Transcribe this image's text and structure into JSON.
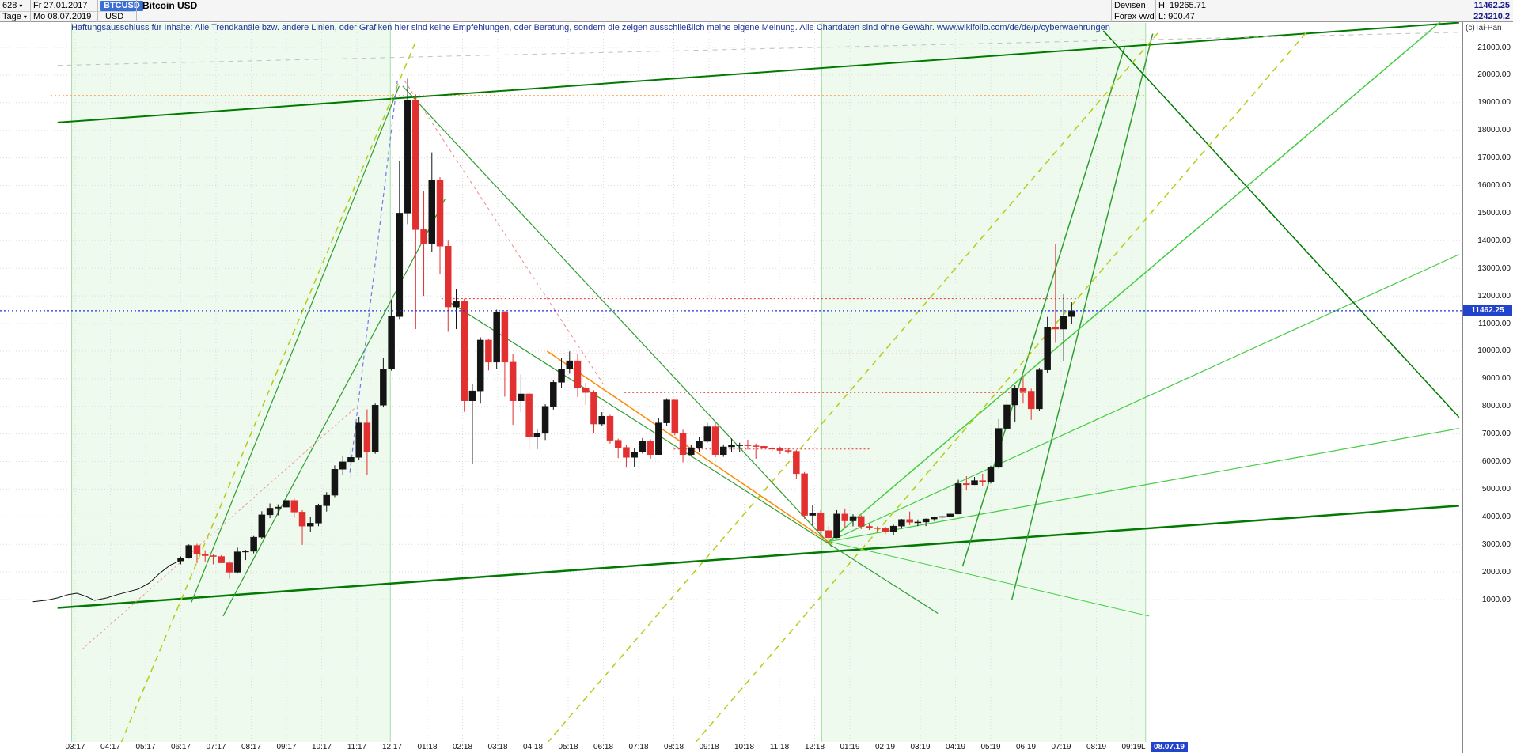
{
  "header": {
    "bars_count": "628",
    "dropdown_icon": "▾",
    "start_date": "Fr 27.01.2017",
    "symbol": "BTCUSD",
    "instrument": "Bitcoin USD",
    "period": "Tage",
    "end_date": "Mo 08.07.2019",
    "currency": "USD",
    "market": "Devisen",
    "feed": "Forex vwd",
    "high": "H: 19265.71",
    "low": "L: 900.47",
    "last_price": "11462.25",
    "last_volume": "224210.2",
    "credit": "(c)Tai-Pan"
  },
  "disclaimer": "Haftungsausschluss für Inhalte: Alle Trendkanäle bzw. andere Linien, oder Grafiken hier sind keine Empfehlungen, oder Beratung, sondern die zeigen ausschließlich meine eigene Meinung. Alle Chartdaten sind ohne Gewähr.  www.wikifolio.com/de/de/p/cyberwaehrungen",
  "axis": {
    "price_tag": "11462.25",
    "last_marker": "L",
    "date_tag": "08.07.19"
  },
  "chart_data": {
    "type": "candlestick",
    "instrument": "Bitcoin USD (BTCUSD)",
    "timeframe": "Tage",
    "date_range": [
      "27.01.2017",
      "08.07.2019"
    ],
    "period_high": 19265.71,
    "period_low": 900.47,
    "last_price": 11462.25,
    "ylim": [
      1000,
      21000
    ],
    "y_tick_labels": [
      "21000.00",
      "20000.00",
      "19000.00",
      "18000.00",
      "17000.00",
      "16000.00",
      "15000.00",
      "14000.00",
      "13000.00",
      "12000.00",
      "11000.00",
      "10000.00",
      "9000.00",
      "8000.00",
      "7000.00",
      "6000.00",
      "5000.00",
      "4000.00",
      "3000.00",
      "2000.00",
      "1000.00"
    ],
    "x_labels": [
      "03:17",
      "04:17",
      "05:17",
      "06:17",
      "07:17",
      "08:17",
      "09:17",
      "10:17",
      "11:17",
      "12:17",
      "01:18",
      "02:18",
      "03:18",
      "04:18",
      "05:18",
      "06:18",
      "07:18",
      "08:18",
      "09:18",
      "10:18",
      "11:18",
      "12:18",
      "01:19",
      "02:19",
      "03:19",
      "04:19",
      "05:19",
      "06:19",
      "07:19",
      "08:19",
      "09:19"
    ],
    "time_base": {
      "start_m": 4.0,
      "step_m": 0.23
    },
    "colors": {
      "up_candle": "#141414",
      "down_candle": "#e23030",
      "current_price_line": "#2233dd",
      "price_tag_bg": "#2244cc",
      "trend_primary": "#007a00",
      "trend_secondary": "#2e9e2e",
      "fan_green": "#44cc44",
      "dash_chartreuse": "#b4cc14",
      "orange_line": "#ff8800",
      "level_red": "#e03030",
      "grid": "#dcdcdc",
      "region_fill": "rgba(130,220,130,0.14)",
      "region_border": "rgba(90,190,90,0.5)"
    },
    "pre_line": [
      [
        -0.2,
        920
      ],
      [
        0.2,
        980
      ],
      [
        0.5,
        1060
      ],
      [
        0.8,
        1180
      ],
      [
        1.05,
        1230
      ],
      [
        1.3,
        1120
      ],
      [
        1.55,
        970
      ],
      [
        1.9,
        1060
      ],
      [
        2.2,
        1180
      ],
      [
        2.5,
        1280
      ],
      [
        2.8,
        1380
      ],
      [
        3.1,
        1600
      ],
      [
        3.4,
        1950
      ],
      [
        3.7,
        2250
      ],
      [
        4.0,
        2420
      ]
    ],
    "candles": [
      [
        2400,
        2560,
        2280,
        2510
      ],
      [
        2510,
        3000,
        2480,
        2960
      ],
      [
        2960,
        3020,
        2320,
        2650
      ],
      [
        2650,
        2790,
        2380,
        2590
      ],
      [
        2590,
        2630,
        2280,
        2560
      ],
      [
        2560,
        2610,
        2330,
        2330
      ],
      [
        2330,
        2390,
        1760,
        1990
      ],
      [
        1990,
        2880,
        1940,
        2730
      ],
      [
        2730,
        2800,
        2430,
        2750
      ],
      [
        2750,
        3300,
        2670,
        3260
      ],
      [
        3260,
        4200,
        3200,
        4070
      ],
      [
        4070,
        4480,
        3950,
        4310
      ],
      [
        4310,
        4450,
        4050,
        4350
      ],
      [
        4350,
        4950,
        4340,
        4590
      ],
      [
        4590,
        4660,
        3970,
        4170
      ],
      [
        4170,
        4240,
        2980,
        3660
      ],
      [
        3660,
        3980,
        3450,
        3770
      ],
      [
        3770,
        4470,
        3660,
        4400
      ],
      [
        4400,
        4890,
        4190,
        4780
      ],
      [
        4780,
        5860,
        4710,
        5720
      ],
      [
        5720,
        6200,
        5500,
        5990
      ],
      [
        5990,
        6470,
        5390,
        6150
      ],
      [
        6150,
        7620,
        6050,
        7400
      ],
      [
        7400,
        7890,
        5510,
        6350
      ],
      [
        6350,
        8100,
        6280,
        8040
      ],
      [
        8040,
        9750,
        7960,
        9350
      ],
      [
        9350,
        11850,
        9290,
        11250
      ],
      [
        11250,
        16880,
        11160,
        15000
      ],
      [
        15000,
        19870,
        14600,
        19100
      ],
      [
        19100,
        19300,
        10800,
        14400
      ],
      [
        14400,
        15800,
        12000,
        13900
      ],
      [
        13900,
        17200,
        13600,
        16200
      ],
      [
        16200,
        16300,
        12800,
        13800
      ],
      [
        13800,
        14000,
        10700,
        11600
      ],
      [
        11600,
        12250,
        10800,
        11800
      ],
      [
        11800,
        11900,
        7800,
        8200
      ],
      [
        8200,
        8800,
        5920,
        8560
      ],
      [
        8560,
        10500,
        8100,
        10400
      ],
      [
        10400,
        10450,
        9300,
        9600
      ],
      [
        9600,
        11500,
        9350,
        11400
      ],
      [
        11400,
        11450,
        8350,
        9600
      ],
      [
        9600,
        9890,
        7330,
        8200
      ],
      [
        8200,
        9150,
        7790,
        8450
      ],
      [
        8450,
        8510,
        6430,
        6900
      ],
      [
        6900,
        7180,
        6450,
        7020
      ],
      [
        7020,
        8075,
        6780,
        8000
      ],
      [
        8000,
        8940,
        7880,
        8870
      ],
      [
        8870,
        9750,
        8650,
        9350
      ],
      [
        9350,
        9990,
        9180,
        9650
      ],
      [
        9650,
        9900,
        8340,
        8670
      ],
      [
        8670,
        8850,
        8050,
        8500
      ],
      [
        8500,
        8580,
        7040,
        7360
      ],
      [
        7360,
        7790,
        7280,
        7640
      ],
      [
        7640,
        7690,
        6650,
        6770
      ],
      [
        6770,
        6830,
        6120,
        6510
      ],
      [
        6510,
        6600,
        5780,
        6150
      ],
      [
        6150,
        6480,
        5800,
        6350
      ],
      [
        6350,
        6850,
        6290,
        6740
      ],
      [
        6740,
        6800,
        6100,
        6250
      ],
      [
        6250,
        7580,
        6250,
        7400
      ],
      [
        7400,
        8290,
        7280,
        8230
      ],
      [
        8230,
        8240,
        6950,
        7030
      ],
      [
        7030,
        7150,
        5970,
        6250
      ],
      [
        6250,
        6590,
        6180,
        6500
      ],
      [
        6500,
        6900,
        6360,
        6730
      ],
      [
        6730,
        7400,
        6680,
        7260
      ],
      [
        7260,
        7410,
        6150,
        6250
      ],
      [
        6250,
        6620,
        6170,
        6530
      ],
      [
        6530,
        6830,
        6340,
        6600
      ],
      [
        6600,
        6680,
        6330,
        6600
      ],
      [
        6600,
        6790,
        6430,
        6570
      ],
      [
        6570,
        6650,
        6100,
        6550
      ],
      [
        6550,
        6620,
        6370,
        6480
      ],
      [
        6480,
        6550,
        6350,
        6470
      ],
      [
        6470,
        6540,
        6270,
        6400
      ],
      [
        6400,
        6480,
        6290,
        6370
      ],
      [
        6370,
        6420,
        5360,
        5560
      ],
      [
        5560,
        5620,
        3930,
        4050
      ],
      [
        4050,
        4410,
        3700,
        4140
      ],
      [
        4140,
        4240,
        3400,
        3500
      ],
      [
        3500,
        3660,
        3150,
        3240
      ],
      [
        3240,
        4240,
        3240,
        4100
      ],
      [
        4100,
        4300,
        3580,
        3850
      ],
      [
        3850,
        4090,
        3650,
        4010
      ],
      [
        4010,
        4060,
        3550,
        3650
      ],
      [
        3650,
        3760,
        3520,
        3600
      ],
      [
        3600,
        3650,
        3460,
        3570
      ],
      [
        3570,
        3640,
        3370,
        3470
      ],
      [
        3470,
        3710,
        3340,
        3660
      ],
      [
        3660,
        3920,
        3570,
        3900
      ],
      [
        3900,
        4190,
        3700,
        3800
      ],
      [
        3800,
        3900,
        3660,
        3810
      ],
      [
        3810,
        3940,
        3660,
        3920
      ],
      [
        3920,
        4010,
        3850,
        3980
      ],
      [
        3980,
        4060,
        3900,
        4010
      ],
      [
        4010,
        4110,
        3970,
        4100
      ],
      [
        4100,
        5340,
        4090,
        5200
      ],
      [
        5200,
        5470,
        4950,
        5160
      ],
      [
        5160,
        5440,
        5150,
        5310
      ],
      [
        5310,
        5560,
        5120,
        5270
      ],
      [
        5270,
        5850,
        5200,
        5790
      ],
      [
        5790,
        7540,
        5740,
        7200
      ],
      [
        7200,
        8260,
        6580,
        8050
      ],
      [
        8050,
        8760,
        7440,
        8670
      ],
      [
        8670,
        9090,
        8100,
        8550
      ],
      [
        8550,
        8640,
        7510,
        7910
      ],
      [
        7910,
        9390,
        7830,
        9320
      ],
      [
        9320,
        11240,
        9210,
        10850
      ],
      [
        10850,
        13880,
        10300,
        10800
      ],
      [
        10800,
        12060,
        9650,
        11250
      ],
      [
        11250,
        11770,
        11000,
        11462.25
      ]
    ],
    "levels": [
      {
        "p": 19265.71,
        "m1": 0.3,
        "m2": 31.4,
        "c": "#ffaa66",
        "d": "2,3",
        "w": 1
      },
      {
        "p": 11900,
        "m1": 11.4,
        "m2": 29.5,
        "c": "#e03030",
        "d": "2,3",
        "w": 1
      },
      {
        "p": 9900,
        "m1": 14.3,
        "m2": 28.6,
        "c": "#e03030",
        "d": "2,3",
        "w": 1
      },
      {
        "p": 8500,
        "m1": 16.6,
        "m2": 28.2,
        "c": "#e03030",
        "d": "2,3",
        "w": 1
      },
      {
        "p": 6450,
        "m1": 18.0,
        "m2": 23.6,
        "c": "#e03030",
        "d": "2,3",
        "w": 1
      },
      {
        "p": 13880,
        "m1": 27.9,
        "m2": 30.6,
        "c": "#e03030",
        "d": "4,3",
        "w": 1
      }
    ],
    "trendlines": [
      {
        "pts": [
          0.5,
          18280,
          40.3,
          21900
        ],
        "c": "#007a00",
        "w": 2
      },
      {
        "pts": [
          0.5,
          700,
          40.3,
          4400
        ],
        "c": "#007a00",
        "w": 2.5
      },
      {
        "pts": [
          4.3,
          900,
          10.2,
          19600
        ],
        "c": "#2e9e2e",
        "w": 1.2
      },
      {
        "pts": [
          5.2,
          400,
          11.5,
          15500
        ],
        "c": "#2e9e2e",
        "w": 1.2
      },
      {
        "pts": [
          10.3,
          19600,
          22.5,
          2900
        ],
        "c": "#2e9e2e",
        "w": 1.2
      },
      {
        "pts": [
          11.6,
          11800,
          25.5,
          500
        ],
        "c": "#2e9e2e",
        "w": 1.2
      },
      {
        "pts": [
          14.4,
          10000,
          22.5,
          3000
        ],
        "c": "#ff8800",
        "w": 1.5
      },
      {
        "pts": [
          22.4,
          3100,
          40.3,
          22500
        ],
        "c": "#44cc44",
        "w": 1.5
      },
      {
        "pts": [
          22.4,
          3100,
          40.3,
          13500
        ],
        "c": "#44cc44",
        "w": 1.2
      },
      {
        "pts": [
          22.4,
          3100,
          40.3,
          7200
        ],
        "c": "#44cc44",
        "w": 1.2
      },
      {
        "pts": [
          22.4,
          3100,
          31.5,
          400
        ],
        "c": "#44cc44",
        "w": 1
      },
      {
        "pts": [
          26.2,
          2200,
          30.8,
          21000
        ],
        "c": "#2e9e2e",
        "w": 1.5
      },
      {
        "pts": [
          27.6,
          1000,
          31.6,
          21500
        ],
        "c": "#2e9e2e",
        "w": 1.5
      },
      {
        "pts": [
          30.2,
          21600,
          40.3,
          7600
        ],
        "c": "#007a00",
        "w": 1.5
      },
      {
        "pts": [
          2.3,
          -4200,
          10.7,
          21300
        ],
        "c": "#b4cc14",
        "w": 1.5,
        "d": "8,6"
      },
      {
        "pts": [
          14.4,
          -4200,
          31.8,
          21600
        ],
        "c": "#b4cc14",
        "w": 1.5,
        "d": "8,6"
      },
      {
        "pts": [
          18.6,
          -4200,
          36.0,
          21600
        ],
        "c": "#b4cc14",
        "w": 1.5,
        "d": "8,6"
      },
      {
        "pts": [
          0.5,
          20350,
          40.3,
          21550
        ],
        "c": "#c0c0c0",
        "w": 1,
        "d": "6,6"
      },
      {
        "pts": [
          8.8,
          5600,
          10.15,
          19800
        ],
        "c": "#7777ee",
        "w": 1.2,
        "d": "5,4"
      },
      {
        "pts": [
          10.35,
          19800,
          16.0,
          8800
        ],
        "c": "#ee8888",
        "w": 1,
        "d": "4,4"
      },
      {
        "pts": [
          1.2,
          -800,
          9.0,
          8000
        ],
        "c": "#ee9999",
        "w": 1,
        "d": "3,3"
      }
    ],
    "regions": [
      {
        "m1": 0.9,
        "m2": 9.95
      },
      {
        "m1": 22.2,
        "m2": 31.4
      }
    ]
  }
}
